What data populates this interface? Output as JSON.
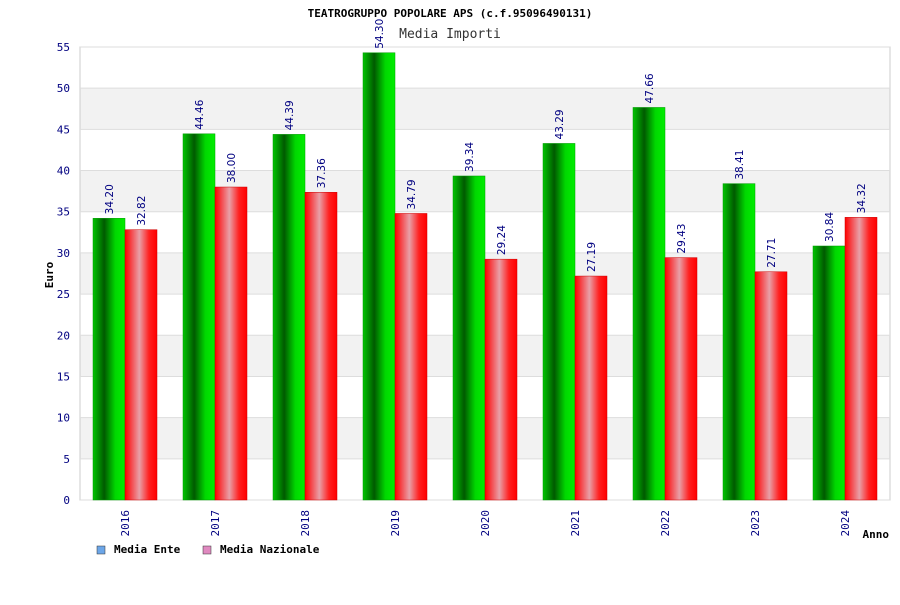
{
  "chart_data": {
    "type": "bar",
    "title": "TEATROGRUPPO POPOLARE APS (c.f.95096490131)",
    "subtitle": "Media Importi",
    "xlabel": "Anno",
    "ylabel": "Euro",
    "categories": [
      "2016",
      "2017",
      "2018",
      "2019",
      "2020",
      "2021",
      "2022",
      "2023",
      "2024"
    ],
    "series": [
      {
        "name": "Media Ente",
        "values": [
          34.2,
          44.46,
          44.39,
          54.3,
          39.34,
          43.29,
          47.66,
          38.41,
          30.84
        ],
        "labels": [
          "34.20",
          "44.46",
          "44.39",
          "54.30",
          "39.34",
          "43.29",
          "47.66",
          "38.41",
          "30.84"
        ],
        "color": "#00cc00",
        "legend_color": "#6ca6e8"
      },
      {
        "name": "Media Nazionale",
        "values": [
          32.82,
          38.0,
          37.36,
          34.79,
          29.24,
          27.19,
          29.43,
          27.71,
          34.32
        ],
        "labels": [
          "32.82",
          "38.00",
          "37.36",
          "34.79",
          "29.24",
          "27.19",
          "29.43",
          "27.71",
          "34.32"
        ],
        "color": "#ff0000",
        "legend_color": "#e089c0"
      }
    ],
    "ylim": [
      0,
      55
    ],
    "yticks": [
      "0",
      "5",
      "10",
      "15",
      "20",
      "25",
      "30",
      "35",
      "40",
      "45",
      "50",
      "55"
    ],
    "grid": true,
    "legend_position": "bottom-left"
  }
}
